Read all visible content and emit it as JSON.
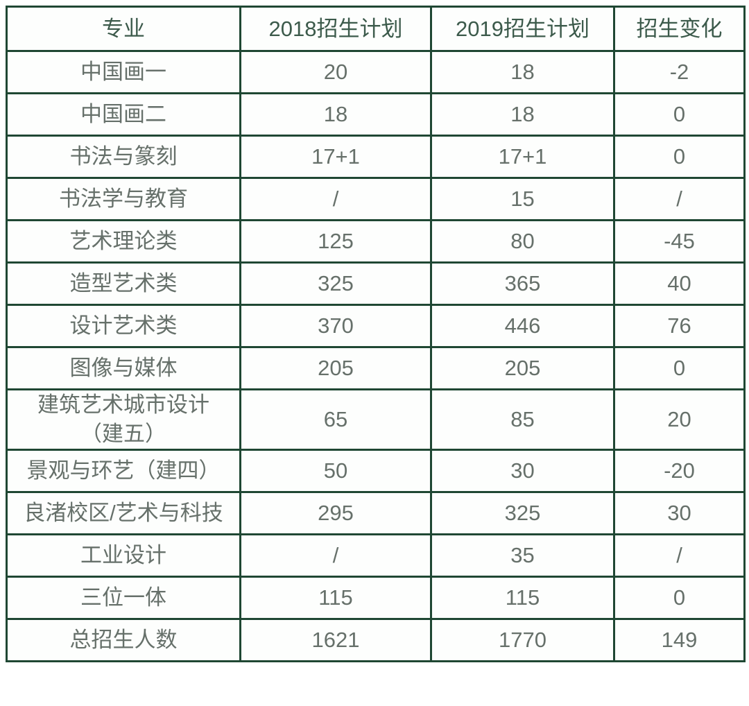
{
  "chart_data": {
    "type": "table",
    "columns": [
      "专业",
      "2018招生计划",
      "2019招生计划",
      "招生变化"
    ],
    "rows": [
      [
        "中国画一",
        "20",
        "18",
        "-2"
      ],
      [
        "中国画二",
        "18",
        "18",
        "0"
      ],
      [
        "书法与篆刻",
        "17+1",
        "17+1",
        "0"
      ],
      [
        "书法学与教育",
        "/",
        "15",
        "/"
      ],
      [
        "艺术理论类",
        "125",
        "80",
        "-45"
      ],
      [
        "造型艺术类",
        "325",
        "365",
        "40"
      ],
      [
        "设计艺术类",
        "370",
        "446",
        "76"
      ],
      [
        "图像与媒体",
        "205",
        "205",
        "0"
      ],
      [
        "建筑艺术城市设计\n（建五）",
        "65",
        "85",
        "20"
      ],
      [
        "景观与环艺（建四）",
        "50",
        "30",
        "-20"
      ],
      [
        "良渚校区/艺术与科技",
        "295",
        "325",
        "30"
      ],
      [
        "工业设计",
        "/",
        "35",
        "/"
      ],
      [
        "三位一体",
        "115",
        "115",
        "0"
      ],
      [
        "总招生人数",
        "1621",
        "1770",
        "149"
      ]
    ]
  },
  "colors": {
    "border": "#1f4733",
    "header_text": "#3c5a4b",
    "body_text": "#66706a",
    "cell_bg": "#fdfefd",
    "page_bg": "#ffffff"
  }
}
